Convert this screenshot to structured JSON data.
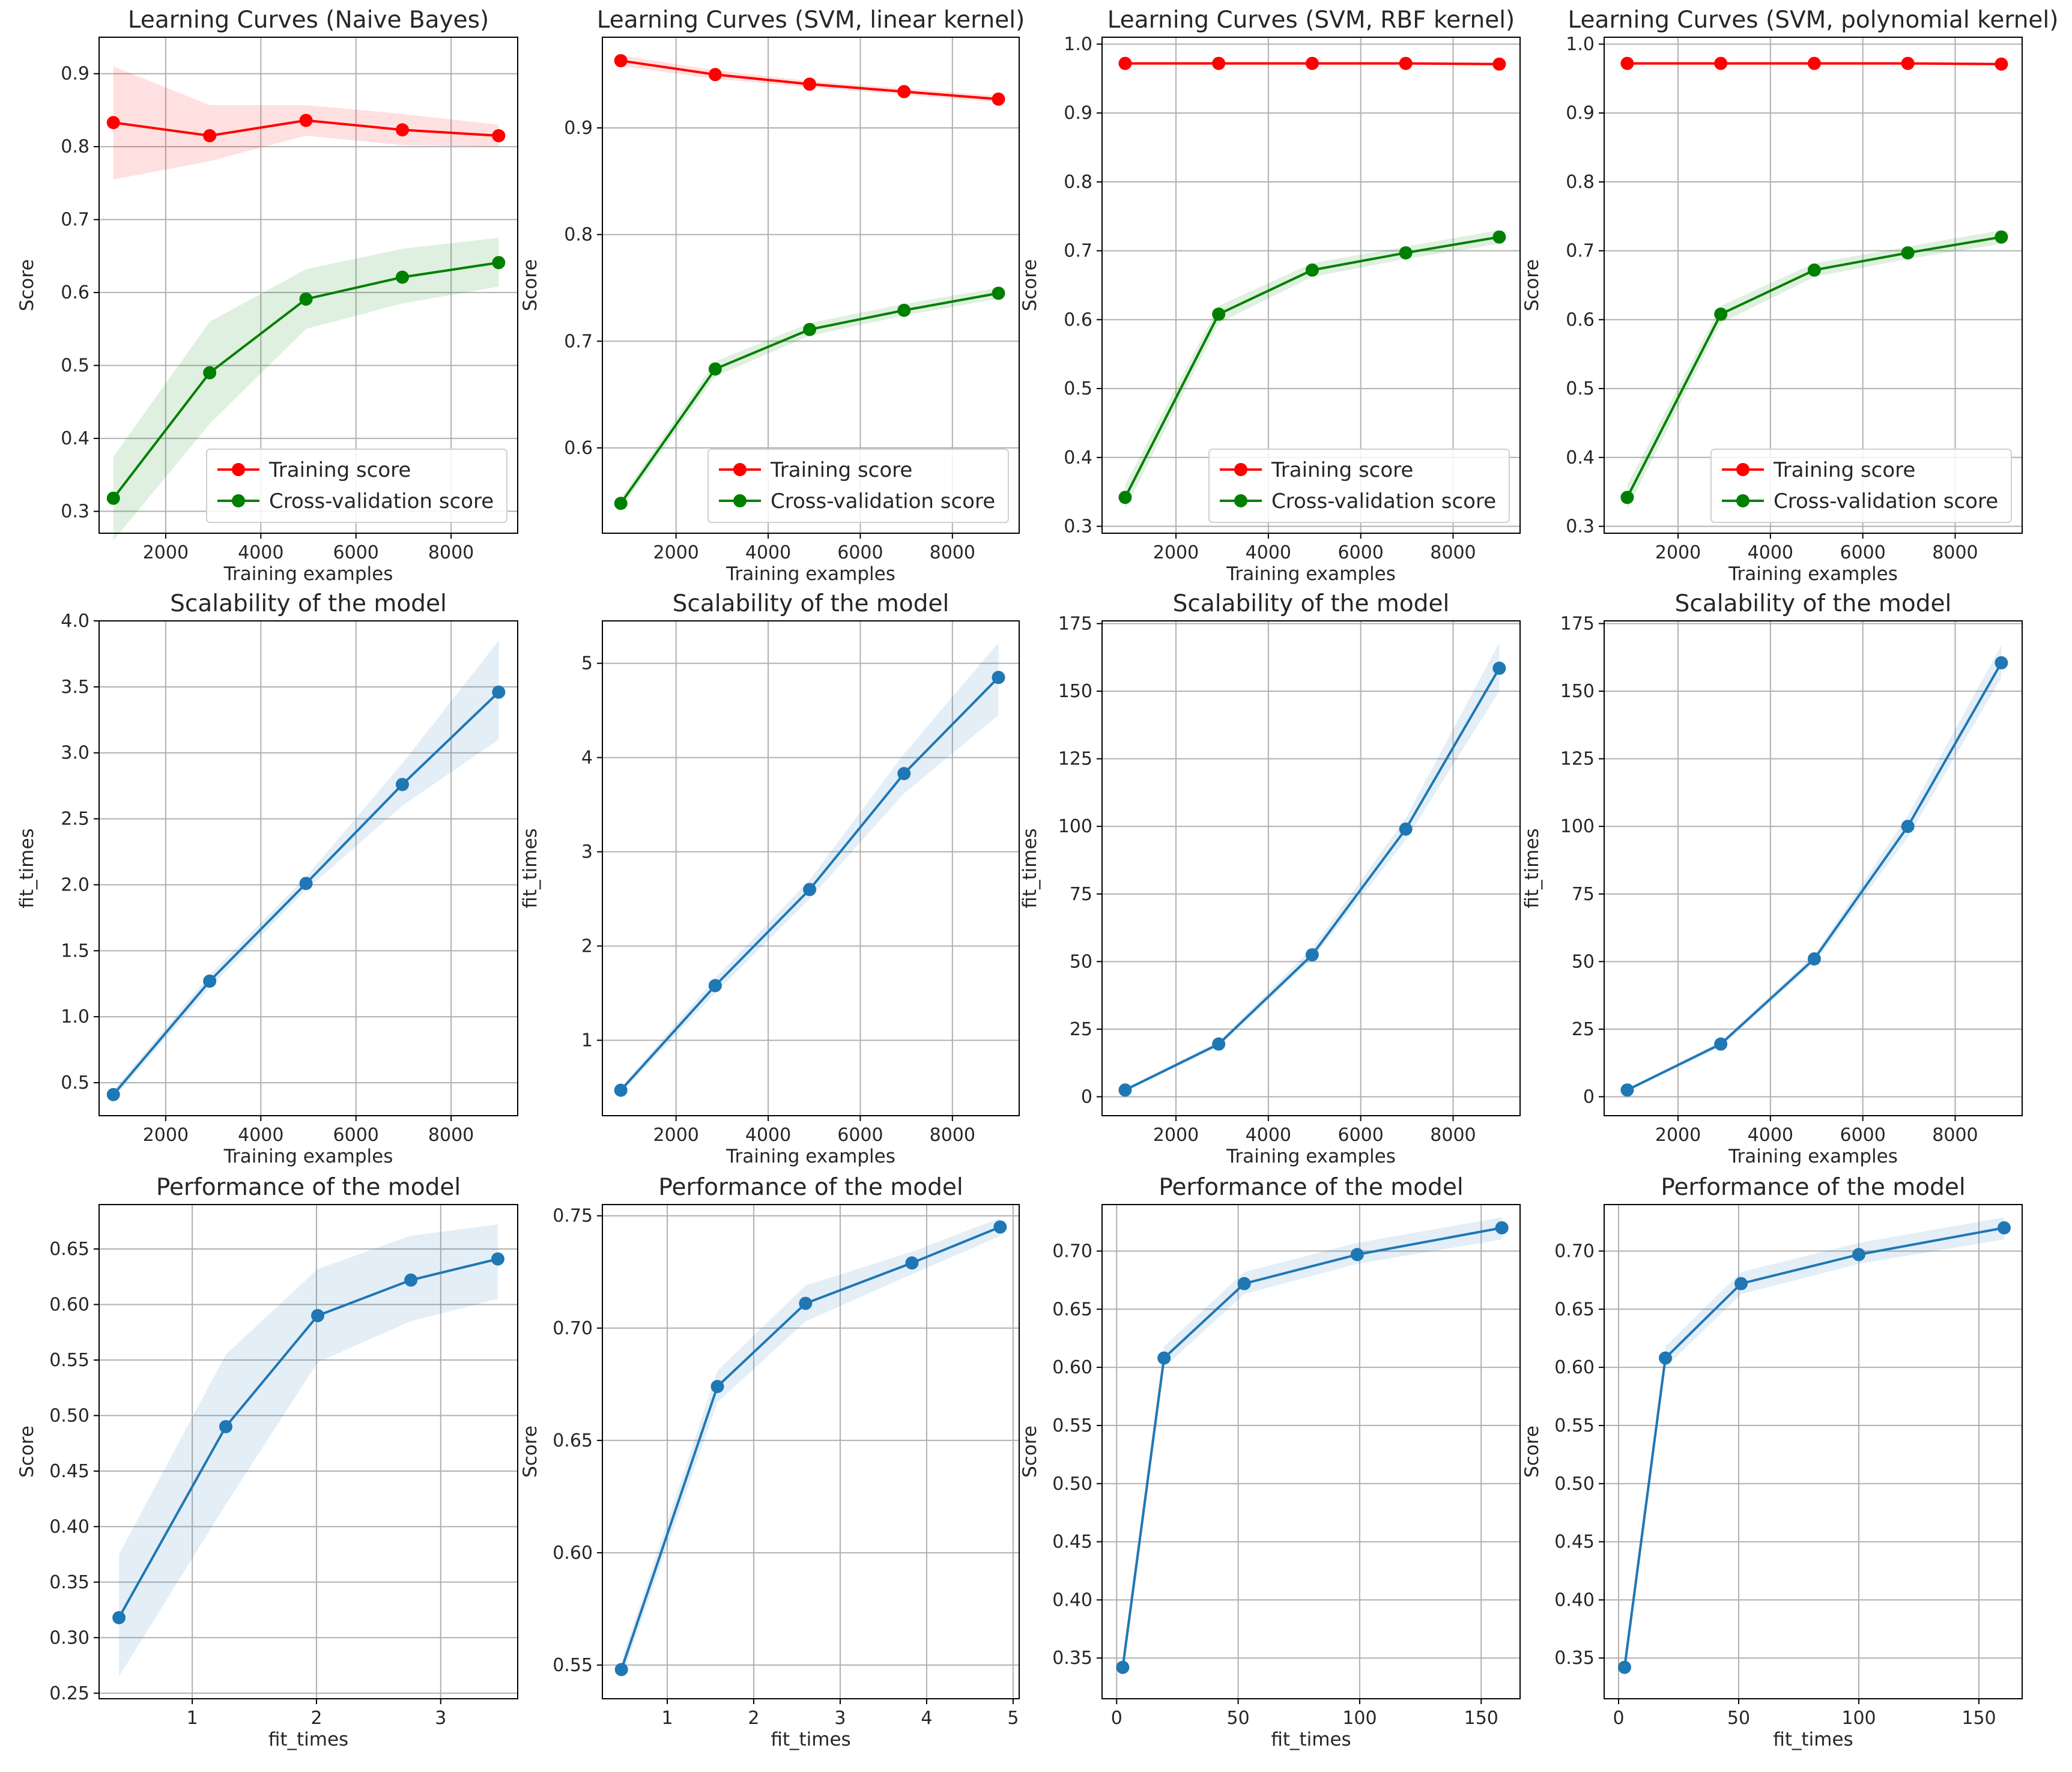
{
  "chart_data": [
    {
      "type": "line",
      "row": 0,
      "col": 0,
      "title": "Learning Curves (Naive Bayes)",
      "xlabel": "Training examples",
      "ylabel": "Score",
      "xlim": [
        600,
        9400
      ],
      "ylim": [
        0.27,
        0.95
      ],
      "xticks": [
        2000,
        4000,
        6000,
        8000
      ],
      "xtick_labels": [
        "2000",
        "4000",
        "6000",
        "8000"
      ],
      "yticks": [
        0.3,
        0.4,
        0.5,
        0.6,
        0.7,
        0.8,
        0.9
      ],
      "ytick_labels": [
        "0.3",
        "0.4",
        "0.5",
        "0.6",
        "0.7",
        "0.8",
        "0.9"
      ],
      "x": [
        900,
        2925,
        4950,
        6975,
        9000
      ],
      "series": [
        {
          "name": "Training score",
          "color": "#ff0000",
          "values": [
            0.833,
            0.815,
            0.836,
            0.823,
            0.815
          ],
          "band": [
            [
              0.755,
              0.91
            ],
            [
              0.78,
              0.857
            ],
            [
              0.815,
              0.857
            ],
            [
              0.802,
              0.845
            ],
            [
              0.8,
              0.83
            ]
          ]
        },
        {
          "name": "Cross-validation score",
          "color": "#008000",
          "values": [
            0.318,
            0.49,
            0.591,
            0.621,
            0.641
          ],
          "band": [
            [
              0.26,
              0.375
            ],
            [
              0.42,
              0.56
            ],
            [
              0.55,
              0.632
            ],
            [
              0.585,
              0.66
            ],
            [
              0.608,
              0.675
            ]
          ]
        }
      ],
      "legend": {
        "position": "lower-right",
        "entries": [
          "Training score",
          "Cross-validation score"
        ]
      }
    },
    {
      "type": "line",
      "row": 0,
      "col": 1,
      "title": "Learning Curves (SVM, linear kernel)",
      "xlabel": "Training examples",
      "ylabel": "Score",
      "xlim": [
        400,
        9450
      ],
      "ylim": [
        0.52,
        0.985
      ],
      "xticks": [
        2000,
        4000,
        6000,
        8000
      ],
      "xtick_labels": [
        "2000",
        "4000",
        "6000",
        "8000"
      ],
      "yticks": [
        0.6,
        0.7,
        0.8,
        0.9
      ],
      "ytick_labels": [
        "0.6",
        "0.7",
        "0.8",
        "0.9"
      ],
      "x": [
        800,
        2850,
        4900,
        6950,
        9000
      ],
      "series": [
        {
          "name": "Training score",
          "color": "#ff0000",
          "values": [
            0.963,
            0.95,
            0.941,
            0.934,
            0.927
          ],
          "band": [
            [
              0.958,
              0.968
            ],
            [
              0.946,
              0.954
            ],
            [
              0.938,
              0.944
            ],
            [
              0.931,
              0.937
            ],
            [
              0.924,
              0.93
            ]
          ]
        },
        {
          "name": "Cross-validation score",
          "color": "#008000",
          "values": [
            0.548,
            0.674,
            0.711,
            0.729,
            0.745
          ],
          "band": [
            [
              0.543,
              0.553
            ],
            [
              0.667,
              0.681
            ],
            [
              0.705,
              0.717
            ],
            [
              0.724,
              0.735
            ],
            [
              0.74,
              0.75
            ]
          ]
        }
      ],
      "legend": {
        "position": "lower-right",
        "entries": [
          "Training score",
          "Cross-validation score"
        ]
      }
    },
    {
      "type": "line",
      "row": 0,
      "col": 2,
      "title": "Learning Curves (SVM, RBF kernel)",
      "xlabel": "Training examples",
      "ylabel": "Score",
      "xlim": [
        400,
        9450
      ],
      "ylim": [
        0.29,
        1.01
      ],
      "xticks": [
        2000,
        4000,
        6000,
        8000
      ],
      "xtick_labels": [
        "2000",
        "4000",
        "6000",
        "8000"
      ],
      "yticks": [
        0.3,
        0.4,
        0.5,
        0.6,
        0.7,
        0.8,
        0.9,
        1.0
      ],
      "ytick_labels": [
        "0.3",
        "0.4",
        "0.5",
        "0.6",
        "0.7",
        "0.8",
        "0.9",
        "1.0"
      ],
      "x": [
        900,
        2925,
        4950,
        6975,
        9000
      ],
      "series": [
        {
          "name": "Training score",
          "color": "#ff0000",
          "values": [
            0.972,
            0.972,
            0.972,
            0.972,
            0.971
          ],
          "band": [
            [
              0.97,
              0.974
            ],
            [
              0.97,
              0.974
            ],
            [
              0.97,
              0.974
            ],
            [
              0.97,
              0.974
            ],
            [
              0.969,
              0.973
            ]
          ]
        },
        {
          "name": "Cross-validation score",
          "color": "#008000",
          "values": [
            0.342,
            0.608,
            0.672,
            0.697,
            0.72
          ],
          "band": [
            [
              0.325,
              0.36
            ],
            [
              0.595,
              0.62
            ],
            [
              0.662,
              0.682
            ],
            [
              0.688,
              0.706
            ],
            [
              0.71,
              0.73
            ]
          ]
        }
      ],
      "legend": {
        "position": "lower-right",
        "entries": [
          "Training score",
          "Cross-validation score"
        ]
      }
    },
    {
      "type": "line",
      "row": 0,
      "col": 3,
      "title": "Learning Curves (SVM, polynomial kernel)",
      "xlabel": "Training examples",
      "ylabel": "Score",
      "xlim": [
        400,
        9450
      ],
      "ylim": [
        0.29,
        1.01
      ],
      "xticks": [
        2000,
        4000,
        6000,
        8000
      ],
      "xtick_labels": [
        "2000",
        "4000",
        "6000",
        "8000"
      ],
      "yticks": [
        0.3,
        0.4,
        0.5,
        0.6,
        0.7,
        0.8,
        0.9,
        1.0
      ],
      "ytick_labels": [
        "0.3",
        "0.4",
        "0.5",
        "0.6",
        "0.7",
        "0.8",
        "0.9",
        "1.0"
      ],
      "x": [
        900,
        2925,
        4950,
        6975,
        9000
      ],
      "series": [
        {
          "name": "Training score",
          "color": "#ff0000",
          "values": [
            0.972,
            0.972,
            0.972,
            0.972,
            0.971
          ],
          "band": [
            [
              0.97,
              0.974
            ],
            [
              0.97,
              0.974
            ],
            [
              0.97,
              0.974
            ],
            [
              0.97,
              0.974
            ],
            [
              0.969,
              0.973
            ]
          ]
        },
        {
          "name": "Cross-validation score",
          "color": "#008000",
          "values": [
            0.342,
            0.608,
            0.672,
            0.697,
            0.72
          ],
          "band": [
            [
              0.325,
              0.36
            ],
            [
              0.595,
              0.62
            ],
            [
              0.662,
              0.682
            ],
            [
              0.688,
              0.706
            ],
            [
              0.71,
              0.73
            ]
          ]
        }
      ],
      "legend": {
        "position": "lower-right",
        "entries": [
          "Training score",
          "Cross-validation score"
        ]
      }
    },
    {
      "type": "line",
      "row": 1,
      "col": 0,
      "title": "Scalability of the model",
      "xlabel": "Training examples",
      "ylabel": "fit_times",
      "xlim": [
        600,
        9400
      ],
      "ylim": [
        0.25,
        4.0
      ],
      "xticks": [
        2000,
        4000,
        6000,
        8000
      ],
      "xtick_labels": [
        "2000",
        "4000",
        "6000",
        "8000"
      ],
      "yticks": [
        0.5,
        1.0,
        1.5,
        2.0,
        2.5,
        3.0,
        3.5,
        4.0
      ],
      "ytick_labels": [
        "0.5",
        "1.0",
        "1.5",
        "2.0",
        "2.5",
        "3.0",
        "3.5",
        "4.0"
      ],
      "x": [
        900,
        2925,
        4950,
        6975,
        9000
      ],
      "series": [
        {
          "name": "fit_times",
          "color": "#1f77b4",
          "values": [
            0.41,
            1.27,
            2.01,
            2.76,
            3.46
          ],
          "band": [
            [
              0.38,
              0.44
            ],
            [
              1.22,
              1.32
            ],
            [
              1.96,
              2.06
            ],
            [
              2.6,
              2.92
            ],
            [
              3.1,
              3.85
            ]
          ]
        }
      ]
    },
    {
      "type": "line",
      "row": 1,
      "col": 1,
      "title": "Scalability of the model",
      "xlabel": "Training examples",
      "ylabel": "fit_times",
      "xlim": [
        400,
        9450
      ],
      "ylim": [
        0.2,
        5.45
      ],
      "xticks": [
        2000,
        4000,
        6000,
        8000
      ],
      "xtick_labels": [
        "2000",
        "4000",
        "6000",
        "8000"
      ],
      "yticks": [
        1,
        2,
        3,
        4,
        5
      ],
      "ytick_labels": [
        "1",
        "2",
        "3",
        "4",
        "5"
      ],
      "x": [
        800,
        2850,
        4900,
        6950,
        9000
      ],
      "series": [
        {
          "name": "fit_times",
          "color": "#1f77b4",
          "values": [
            0.47,
            1.58,
            2.6,
            3.83,
            4.85
          ],
          "band": [
            [
              0.44,
              0.5
            ],
            [
              1.5,
              1.66
            ],
            [
              2.5,
              2.7
            ],
            [
              3.62,
              4.04
            ],
            [
              4.45,
              5.22
            ]
          ]
        }
      ]
    },
    {
      "type": "line",
      "row": 1,
      "col": 2,
      "title": "Scalability of the model",
      "xlabel": "Training examples",
      "ylabel": "fit_times",
      "xlim": [
        400,
        9450
      ],
      "ylim": [
        -7,
        176
      ],
      "xticks": [
        2000,
        4000,
        6000,
        8000
      ],
      "xtick_labels": [
        "2000",
        "4000",
        "6000",
        "8000"
      ],
      "yticks": [
        0,
        25,
        50,
        75,
        100,
        125,
        150,
        175
      ],
      "ytick_labels": [
        "0",
        "25",
        "50",
        "75",
        "100",
        "125",
        "150",
        "175"
      ],
      "x": [
        900,
        2925,
        4950,
        6975,
        9000
      ],
      "series": [
        {
          "name": "fit_times",
          "color": "#1f77b4",
          "values": [
            2.5,
            19.5,
            52.5,
            99,
            158.5
          ],
          "band": [
            [
              2,
              3
            ],
            [
              18.5,
              20.5
            ],
            [
              51,
              55
            ],
            [
              95,
              103
            ],
            [
              150,
              168
            ]
          ]
        }
      ]
    },
    {
      "type": "line",
      "row": 1,
      "col": 3,
      "title": "Scalability of the model",
      "xlabel": "Training examples",
      "ylabel": "fit_times",
      "xlim": [
        400,
        9450
      ],
      "ylim": [
        -7,
        176
      ],
      "xticks": [
        2000,
        4000,
        6000,
        8000
      ],
      "xtick_labels": [
        "2000",
        "4000",
        "6000",
        "8000"
      ],
      "yticks": [
        0,
        25,
        50,
        75,
        100,
        125,
        150,
        175
      ],
      "ytick_labels": [
        "0",
        "25",
        "50",
        "75",
        "100",
        "125",
        "150",
        "175"
      ],
      "x": [
        900,
        2925,
        4950,
        6975,
        9000
      ],
      "series": [
        {
          "name": "fit_times",
          "color": "#1f77b4",
          "values": [
            2.5,
            19.5,
            51,
            100,
            160.5
          ],
          "band": [
            [
              2,
              3
            ],
            [
              18.5,
              20.5
            ],
            [
              49.5,
              52.5
            ],
            [
              96,
              104
            ],
            [
              155,
              167
            ]
          ]
        }
      ]
    },
    {
      "type": "line",
      "row": 2,
      "col": 0,
      "title": "Performance of the model",
      "xlabel": "fit_times",
      "ylabel": "Score",
      "xlim": [
        0.25,
        3.62
      ],
      "ylim": [
        0.245,
        0.69
      ],
      "xticks": [
        1,
        2,
        3
      ],
      "xtick_labels": [
        "1",
        "2",
        "3"
      ],
      "yticks": [
        0.25,
        0.3,
        0.35,
        0.4,
        0.45,
        0.5,
        0.55,
        0.6,
        0.65
      ],
      "ytick_labels": [
        "0.25",
        "0.30",
        "0.35",
        "0.40",
        "0.45",
        "0.50",
        "0.55",
        "0.60",
        "0.65"
      ],
      "x": [
        0.41,
        1.27,
        2.01,
        2.76,
        3.46
      ],
      "series": [
        {
          "name": "Score",
          "color": "#1f77b4",
          "values": [
            0.318,
            0.49,
            0.59,
            0.622,
            0.641
          ],
          "band": [
            [
              0.265,
              0.375
            ],
            [
              0.42,
              0.555
            ],
            [
              0.548,
              0.632
            ],
            [
              0.585,
              0.662
            ],
            [
              0.605,
              0.672
            ]
          ]
        }
      ]
    },
    {
      "type": "line",
      "row": 2,
      "col": 1,
      "title": "Performance of the model",
      "xlabel": "fit_times",
      "ylabel": "Score",
      "xlim": [
        0.25,
        5.07
      ],
      "ylim": [
        0.535,
        0.755
      ],
      "xticks": [
        1,
        2,
        3,
        4,
        5
      ],
      "xtick_labels": [
        "1",
        "2",
        "3",
        "4",
        "5"
      ],
      "yticks": [
        0.55,
        0.6,
        0.65,
        0.7,
        0.75
      ],
      "ytick_labels": [
        "0.55",
        "0.60",
        "0.65",
        "0.70",
        "0.75"
      ],
      "x": [
        0.47,
        1.58,
        2.6,
        3.83,
        4.85
      ],
      "series": [
        {
          "name": "Score",
          "color": "#1f77b4",
          "values": [
            0.548,
            0.674,
            0.711,
            0.729,
            0.745
          ],
          "band": [
            [
              0.544,
              0.552
            ],
            [
              0.667,
              0.681
            ],
            [
              0.703,
              0.719
            ],
            [
              0.724,
              0.734
            ],
            [
              0.741,
              0.749
            ]
          ]
        }
      ]
    },
    {
      "type": "line",
      "row": 2,
      "col": 2,
      "title": "Performance of the model",
      "xlabel": "fit_times",
      "ylabel": "Score",
      "xlim": [
        -6,
        166
      ],
      "ylim": [
        0.315,
        0.74
      ],
      "xticks": [
        0,
        50,
        100,
        150
      ],
      "xtick_labels": [
        "0",
        "50",
        "100",
        "150"
      ],
      "yticks": [
        0.35,
        0.4,
        0.45,
        0.5,
        0.55,
        0.6,
        0.65,
        0.7
      ],
      "ytick_labels": [
        "0.35",
        "0.40",
        "0.45",
        "0.50",
        "0.55",
        "0.60",
        "0.65",
        "0.70"
      ],
      "x": [
        2.5,
        19.5,
        52.5,
        99,
        158.5
      ],
      "series": [
        {
          "name": "Score",
          "color": "#1f77b4",
          "values": [
            0.342,
            0.608,
            0.672,
            0.697,
            0.72
          ],
          "band": [
            [
              0.332,
              0.352
            ],
            [
              0.6,
              0.618
            ],
            [
              0.663,
              0.682
            ],
            [
              0.689,
              0.707
            ],
            [
              0.71,
              0.729
            ]
          ]
        }
      ]
    },
    {
      "type": "line",
      "row": 2,
      "col": 3,
      "title": "Performance of the model",
      "xlabel": "fit_times",
      "ylabel": "Score",
      "xlim": [
        -6,
        168
      ],
      "ylim": [
        0.315,
        0.74
      ],
      "xticks": [
        0,
        50,
        100,
        150
      ],
      "xtick_labels": [
        "0",
        "50",
        "100",
        "150"
      ],
      "yticks": [
        0.35,
        0.4,
        0.45,
        0.5,
        0.55,
        0.6,
        0.65,
        0.7
      ],
      "ytick_labels": [
        "0.35",
        "0.40",
        "0.45",
        "0.50",
        "0.55",
        "0.60",
        "0.65",
        "0.70"
      ],
      "x": [
        2.5,
        19.5,
        51,
        100,
        160.5
      ],
      "series": [
        {
          "name": "Score",
          "color": "#1f77b4",
          "values": [
            0.342,
            0.608,
            0.672,
            0.697,
            0.72
          ],
          "band": [
            [
              0.332,
              0.352
            ],
            [
              0.6,
              0.618
            ],
            [
              0.663,
              0.682
            ],
            [
              0.689,
              0.707
            ],
            [
              0.71,
              0.729
            ]
          ]
        }
      ]
    }
  ]
}
